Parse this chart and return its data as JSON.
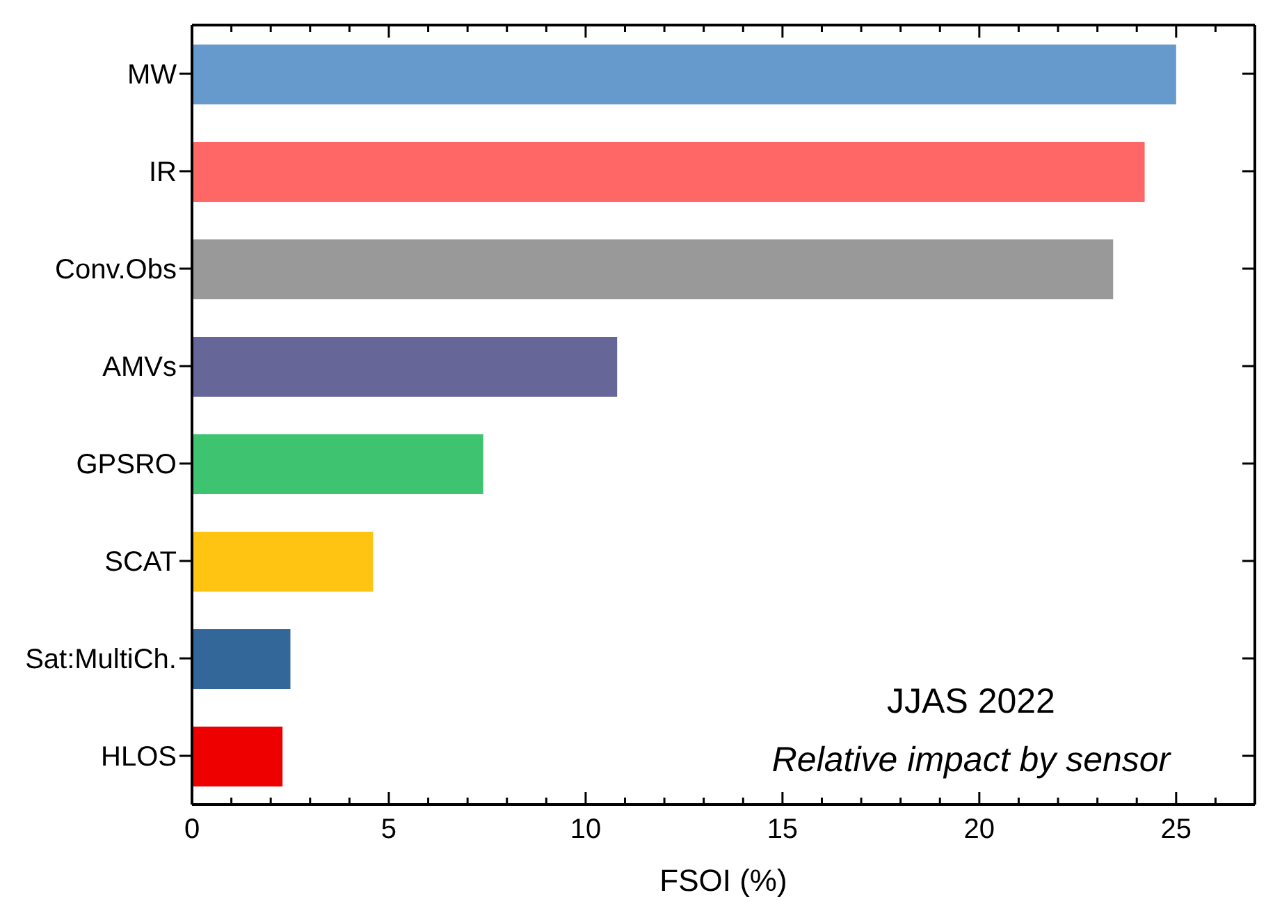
{
  "chart_data": {
    "type": "bar",
    "orientation": "horizontal",
    "xlabel": "FSOI (%)",
    "categories": [
      "MW",
      "IR",
      "Conv.Obs",
      "AMVs",
      "GPSRO",
      "SCAT",
      "Sat:MultiCh.",
      "HLOS"
    ],
    "values": [
      25.0,
      24.2,
      23.4,
      10.8,
      7.4,
      4.6,
      2.5,
      2.3
    ],
    "colors": [
      "#6699cc",
      "#ff6666",
      "#999999",
      "#666699",
      "#3ec471",
      "#ffc312",
      "#336699",
      "#ee0000"
    ],
    "xlim": [
      0,
      27
    ],
    "xticks": [
      0,
      {
        "value": 1,
        "label": null
      },
      {
        "value": 2,
        "label": null
      },
      {
        "value": 3,
        "label": null
      },
      {
        "value": 4,
        "label": null
      },
      5,
      {
        "value": 6,
        "label": null
      },
      {
        "value": 7,
        "label": null
      },
      {
        "value": 8,
        "label": null
      },
      {
        "value": 9,
        "label": null
      },
      10,
      {
        "value": 11,
        "label": null
      },
      {
        "value": 12,
        "label": null
      },
      {
        "value": 13,
        "label": null
      },
      {
        "value": 14,
        "label": null
      },
      15,
      {
        "value": 16,
        "label": null
      },
      {
        "value": 17,
        "label": null
      },
      {
        "value": 18,
        "label": null
      },
      {
        "value": 19,
        "label": null
      },
      20,
      {
        "value": 21,
        "label": null
      },
      {
        "value": 22,
        "label": null
      },
      {
        "value": 23,
        "label": null
      },
      {
        "value": 24,
        "label": null
      },
      25,
      {
        "value": 26,
        "label": null
      }
    ],
    "annotations": [
      "JJAS 2022",
      "Relative impact by sensor"
    ],
    "grid": false,
    "legend": false
  }
}
